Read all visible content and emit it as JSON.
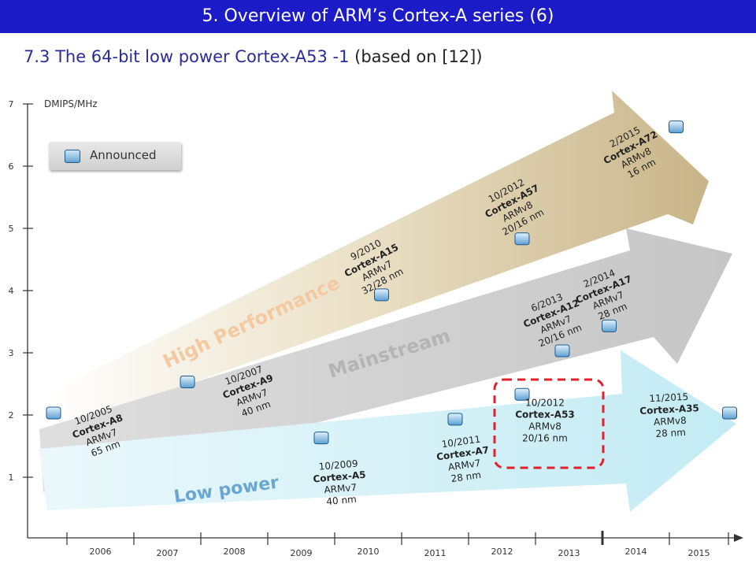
{
  "slide": {
    "title": "5. Overview of ARM’s Cortex-A series (6)",
    "subtitle": "7.3 The 64-bit low power Cortex-A53 -1",
    "subtitle_source": "(based on [12])",
    "title_bar_color": "#1b1bc8",
    "subtitle_color": "#2b2b9a"
  },
  "legend": {
    "label": "Announced"
  },
  "chart_data": {
    "type": "scatter",
    "ylabel": "DMIPS/MHz",
    "ylim": [
      0,
      7
    ],
    "y_ticks": [
      "1",
      "2",
      "3",
      "4",
      "5",
      "6",
      "7"
    ],
    "x_ticks": [
      "2006",
      "2007",
      "2008",
      "2009",
      "2010",
      "2011",
      "2012",
      "2013",
      "2014",
      "2015"
    ],
    "bands": [
      {
        "name": "High Performance",
        "color": "#d4c39a",
        "label_color": "#f3c9a2"
      },
      {
        "name": "Mainstream",
        "color": "#c8c8c8",
        "label_color": "#b4b4b4"
      },
      {
        "name": "Low power",
        "color": "#c9ecf4",
        "label_color": "#6aa6d2"
      }
    ],
    "points": [
      {
        "date": "10/2005",
        "core": "Cortex-A8",
        "arch": "ARMv7",
        "node": "65 nm",
        "x": 2005.8,
        "y": 2.0,
        "segment": "Low power"
      },
      {
        "date": "10/2007",
        "core": "Cortex-A9",
        "arch": "ARMv7",
        "node": "40 nm",
        "x": 2007.8,
        "y": 2.5,
        "segment": "Mainstream"
      },
      {
        "date": "10/2009",
        "core": "Cortex-A5",
        "arch": "ARMv7",
        "node": "40 nm",
        "x": 2009.8,
        "y": 1.6,
        "segment": "Low power"
      },
      {
        "date": "9/2010",
        "core": "Cortex-A15",
        "arch": "ARMv7",
        "node": "32/28 nm",
        "x": 2010.7,
        "y": 3.9,
        "segment": "High Performance"
      },
      {
        "date": "10/2011",
        "core": "Cortex-A7",
        "arch": "ARMv7",
        "node": "28 nm",
        "x": 2011.8,
        "y": 1.9,
        "segment": "Low power"
      },
      {
        "date": "10/2012",
        "core": "Cortex-A57",
        "arch": "ARMv8",
        "node": "20/16 nm",
        "x": 2012.8,
        "y": 4.8,
        "segment": "High Performance"
      },
      {
        "date": "10/2012",
        "core": "Cortex-A53",
        "arch": "ARMv8",
        "node": "20/16 nm",
        "x": 2012.8,
        "y": 2.3,
        "segment": "Low power"
      },
      {
        "date": "6/2013",
        "core": "Cortex-A12",
        "arch": "ARMv7",
        "node": "20/16 nm",
        "x": 2013.4,
        "y": 3.0,
        "segment": "Mainstream"
      },
      {
        "date": "2/2014",
        "core": "Cortex-A17",
        "arch": "ARMv7",
        "node": "28 nm",
        "x": 2014.1,
        "y": 3.4,
        "segment": "Mainstream"
      },
      {
        "date": "2/2015",
        "core": "Cortex-A72",
        "arch": "ARMv8",
        "node": "16 nm",
        "x": 2015.1,
        "y": 6.6,
        "segment": "High Performance"
      },
      {
        "date": "11/2015",
        "core": "Cortex-A35",
        "arch": "ARMv8",
        "node": "28 nm",
        "x": 2015.9,
        "y": 2.0,
        "segment": "Low power"
      }
    ],
    "highlight": {
      "core": "Cortex-A53",
      "style": "red dashed rounded box"
    }
  }
}
